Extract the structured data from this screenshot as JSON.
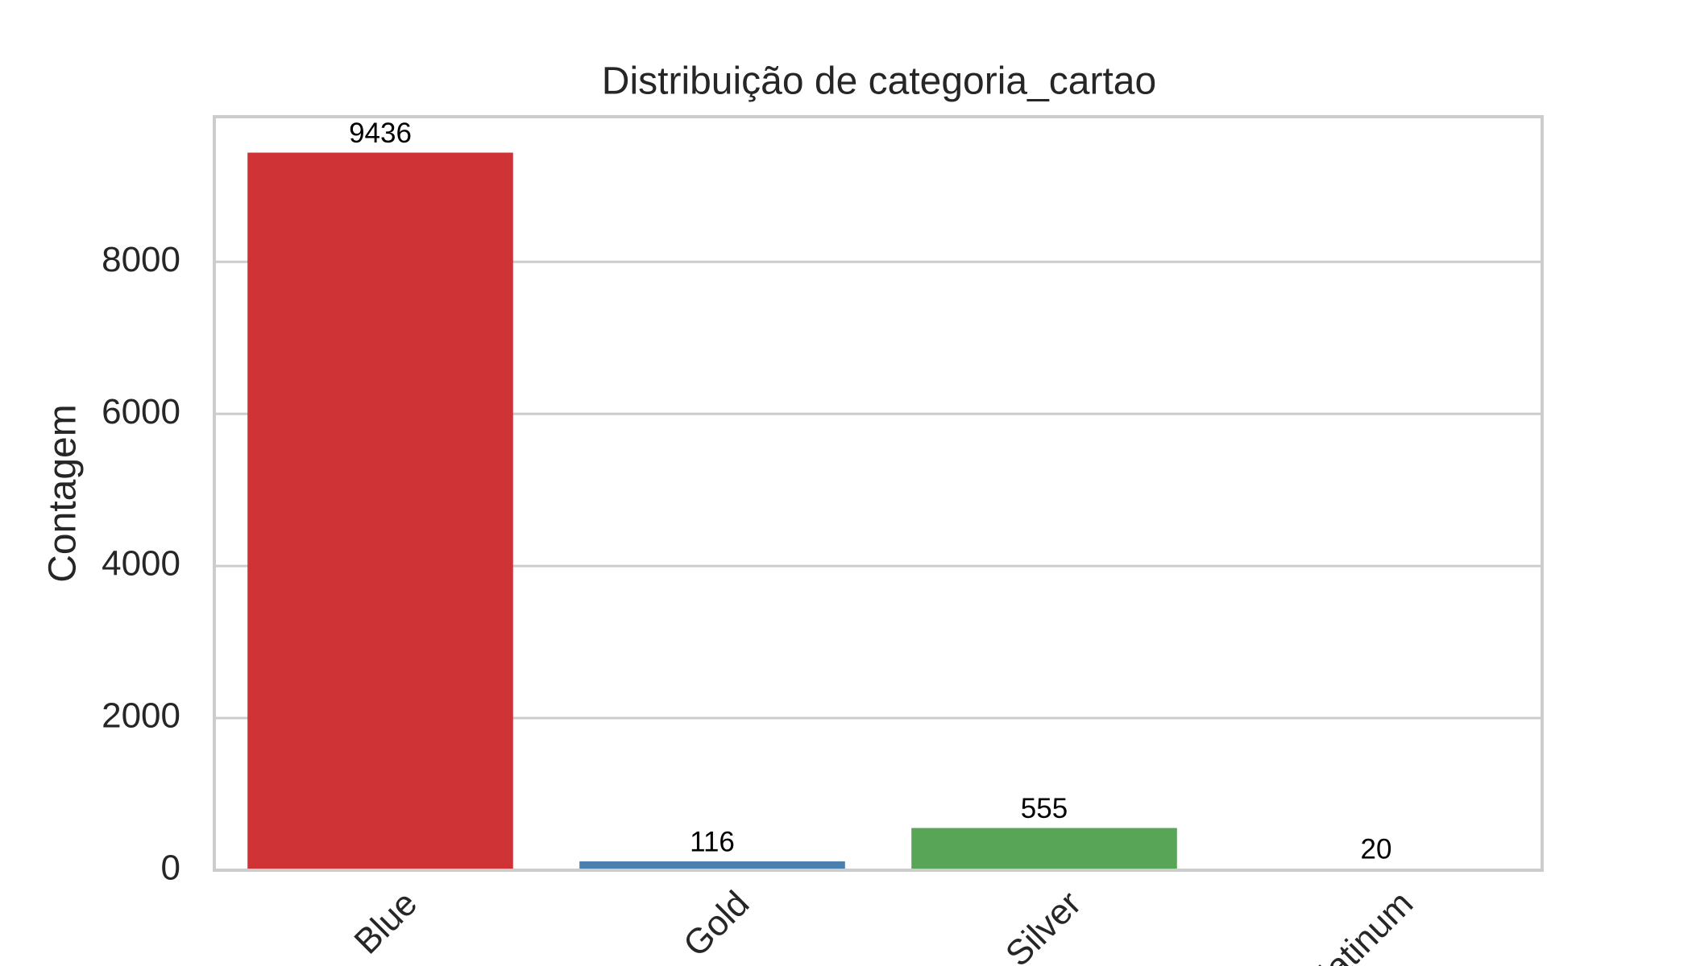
{
  "chart_data": {
    "type": "bar",
    "title": "Distribuição de categoria_cartao",
    "y_label": "Contagem",
    "categories": [
      "Blue",
      "Gold",
      "Silver",
      "Platinum"
    ],
    "values": [
      9436,
      116,
      555,
      20
    ],
    "colors": [
      "#cf3336",
      "#4a7fae",
      "#59a557",
      "#8e5a9c"
    ],
    "ylim": [
      0,
      9908
    ],
    "yticks": [
      0,
      2000,
      4000,
      6000,
      8000
    ],
    "grid": true
  }
}
